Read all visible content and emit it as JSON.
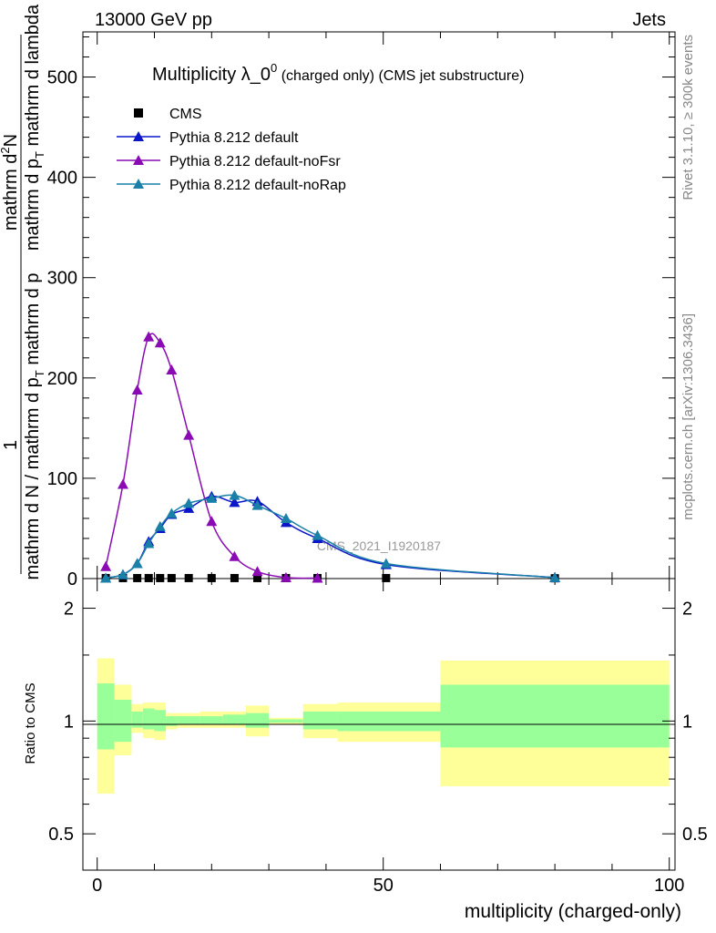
{
  "header": {
    "left": "13000 GeV pp",
    "right": "Jets"
  },
  "side_labels": {
    "rivet": "Rivet 3.1.10, ≥ 300k events",
    "mcplots": "mcplots.cern.ch [arXiv:1306.3436]"
  },
  "chart_data": [
    {
      "type": "line",
      "title_main": "Multiplicity λ_0",
      "title_sup": "0",
      "title_sub": " (charged only) (CMS jet substructure)",
      "xlabel": "multiplicity (charged-only)",
      "ylabel_top": "1",
      "ylabel_num": "mathrm d",
      "ylabel_num_sup": "2",
      "ylabel_num_tail": "N",
      "ylabel_mid": "mathrm d N / mathrm d p",
      "ylabel_mid_sub": "T",
      "ylabel_mid_tail": " mathrm d p",
      "ylabel_den": "mathrm d p",
      "ylabel_den_sub": "T",
      "ylabel_den_tail": " mathrm d lambda",
      "xlim": [
        -2.5,
        101
      ],
      "ylim": [
        0,
        545
      ],
      "yticks": [
        0,
        100,
        200,
        300,
        400,
        500
      ],
      "ytick_labels": [
        "0",
        "100",
        "200",
        "300",
        "400",
        "500"
      ],
      "watermark": "CMS_2021_I1920187",
      "legend": [
        "CMS",
        "Pythia 8.212 default",
        "Pythia 8.212 default-noFsr",
        "Pythia 8.212 default-noRap"
      ],
      "colors": {
        "cms": "#000000",
        "default": "#0a16c8",
        "noFsr": "#8a0ab4",
        "noRap": "#1a80a8"
      },
      "series": [
        {
          "name": "CMS",
          "marker": "square",
          "x": [
            1.5,
            4.5,
            7,
            9,
            11,
            13,
            16,
            20,
            24,
            28,
            33,
            38.5,
            50.5,
            80
          ],
          "y": [
            0.5,
            0.5,
            0.5,
            0.5,
            0.5,
            0.5,
            0.5,
            0.5,
            0.5,
            0.5,
            0.5,
            0.5,
            0.5,
            0.3
          ]
        },
        {
          "name": "Pythia 8.212 default",
          "marker": "triangle",
          "x": [
            1.5,
            4.5,
            7,
            9,
            11,
            13,
            16,
            20,
            24,
            28,
            33,
            38.5,
            50.5,
            80
          ],
          "y": [
            0.5,
            4,
            15,
            37,
            50,
            64,
            70,
            82,
            76,
            77,
            56,
            40,
            14,
            1
          ]
        },
        {
          "name": "Pythia 8.212 default-noFsr",
          "marker": "triangle",
          "x": [
            1.5,
            4.5,
            7,
            9,
            11,
            13,
            16,
            20,
            24,
            28,
            33,
            38.5
          ],
          "y": [
            12,
            94,
            188,
            241,
            235,
            208,
            143,
            57,
            22,
            7,
            1,
            0.5
          ]
        },
        {
          "name": "Pythia 8.212 default-noRap",
          "marker": "triangle",
          "x": [
            1.5,
            4.5,
            7,
            9,
            11,
            13,
            16,
            20,
            24,
            28,
            33,
            38.5,
            50.5,
            80
          ],
          "y": [
            0.5,
            4,
            15,
            35,
            52,
            65,
            75,
            80,
            83,
            73,
            60,
            43,
            15,
            1
          ]
        }
      ]
    },
    {
      "type": "area",
      "ylabel": "Ratio to CMS",
      "xlim": [
        -2.5,
        101
      ],
      "ylim_log": [
        0.4,
        2.4
      ],
      "ytick_labels": [
        "0.5",
        "1",
        "2"
      ],
      "ytick_values": [
        0.5,
        1,
        2
      ],
      "xtick_labels": [
        "0",
        "50",
        "100"
      ],
      "xtick_values": [
        0,
        50,
        100
      ],
      "bands": [
        {
          "x0": 0,
          "x1": 3,
          "yellow": [
            0.64,
            1.47
          ],
          "green": [
            0.84,
            1.26
          ]
        },
        {
          "x0": 3,
          "x1": 6,
          "yellow": [
            0.81,
            1.25
          ],
          "green": [
            0.88,
            1.14
          ]
        },
        {
          "x0": 6,
          "x1": 8,
          "yellow": [
            0.93,
            1.11
          ],
          "green": [
            0.96,
            1.06
          ]
        },
        {
          "x0": 8,
          "x1": 10,
          "yellow": [
            0.9,
            1.12
          ],
          "green": [
            0.95,
            1.08
          ]
        },
        {
          "x0": 10,
          "x1": 12,
          "yellow": [
            0.89,
            1.12
          ],
          "green": [
            0.94,
            1.07
          ]
        },
        {
          "x0": 12,
          "x1": 14,
          "yellow": [
            0.95,
            1.05
          ],
          "green": [
            0.97,
            1.03
          ]
        },
        {
          "x0": 14,
          "x1": 18,
          "yellow": [
            0.96,
            1.05
          ],
          "green": [
            0.98,
            1.03
          ]
        },
        {
          "x0": 18,
          "x1": 22,
          "yellow": [
            0.96,
            1.06
          ],
          "green": [
            0.98,
            1.03
          ]
        },
        {
          "x0": 22,
          "x1": 26,
          "yellow": [
            0.96,
            1.06
          ],
          "green": [
            0.98,
            1.04
          ]
        },
        {
          "x0": 26,
          "x1": 30,
          "yellow": [
            0.91,
            1.1
          ],
          "green": [
            0.96,
            1.05
          ]
        },
        {
          "x0": 30,
          "x1": 36,
          "yellow": [
            0.98,
            1.02
          ],
          "green": [
            0.99,
            1.01
          ]
        },
        {
          "x0": 36,
          "x1": 42,
          "yellow": [
            0.9,
            1.11
          ],
          "green": [
            0.95,
            1.06
          ]
        },
        {
          "x0": 42,
          "x1": 60,
          "yellow": [
            0.88,
            1.12
          ],
          "green": [
            0.94,
            1.06
          ]
        },
        {
          "x0": 60,
          "x1": 100,
          "yellow": [
            0.67,
            1.45
          ],
          "green": [
            0.85,
            1.25
          ]
        }
      ]
    }
  ]
}
